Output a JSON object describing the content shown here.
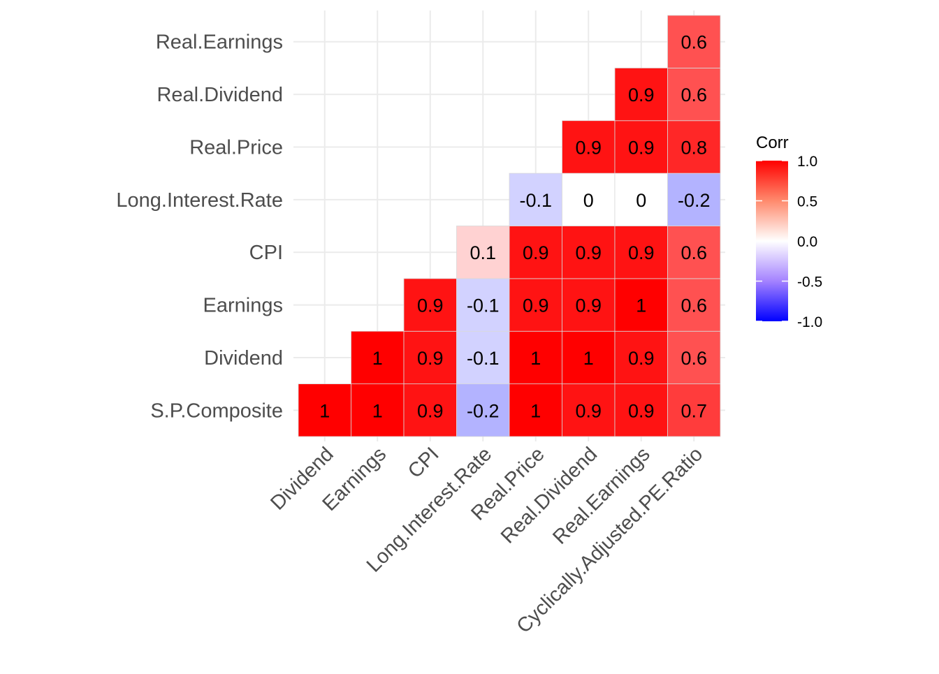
{
  "chart_data": {
    "type": "heatmap",
    "title": "",
    "xlabel": "",
    "ylabel": "",
    "x_categories": [
      "Dividend",
      "Earnings",
      "CPI",
      "Long.Interest.Rate",
      "Real.Price",
      "Real.Dividend",
      "Real.Earnings",
      "Cyclically.Adjusted.PE.Ratio"
    ],
    "y_categories": [
      "S.P.Composite",
      "Dividend",
      "Earnings",
      "CPI",
      "Long.Interest.Rate",
      "Real.Price",
      "Real.Dividend",
      "Real.Earnings"
    ],
    "values": [
      [
        1,
        1,
        0.9,
        -0.2,
        1,
        0.9,
        0.9,
        0.7
      ],
      [
        null,
        1,
        0.9,
        -0.1,
        1,
        1,
        0.9,
        0.6
      ],
      [
        null,
        null,
        0.9,
        -0.1,
        0.9,
        0.9,
        1,
        0.6
      ],
      [
        null,
        null,
        null,
        0.1,
        0.9,
        0.9,
        0.9,
        0.6
      ],
      [
        null,
        null,
        null,
        null,
        -0.1,
        0,
        0,
        -0.2
      ],
      [
        null,
        null,
        null,
        null,
        null,
        0.9,
        0.9,
        0.8
      ],
      [
        null,
        null,
        null,
        null,
        null,
        null,
        0.9,
        0.6
      ],
      [
        null,
        null,
        null,
        null,
        null,
        null,
        null,
        0.6
      ]
    ],
    "color_scale": {
      "low": "#0000FF",
      "mid": "#FFFFFF",
      "high": "#FF0000",
      "limits": [
        -1,
        1
      ]
    },
    "legend": {
      "title": "Corr",
      "position": "right",
      "tick_labels": [
        "1.0",
        "0.5",
        "0.0",
        "-0.5",
        "-1.0"
      ],
      "tick_values": [
        1,
        0.5,
        0,
        -0.5,
        -1
      ]
    },
    "grid": true
  }
}
